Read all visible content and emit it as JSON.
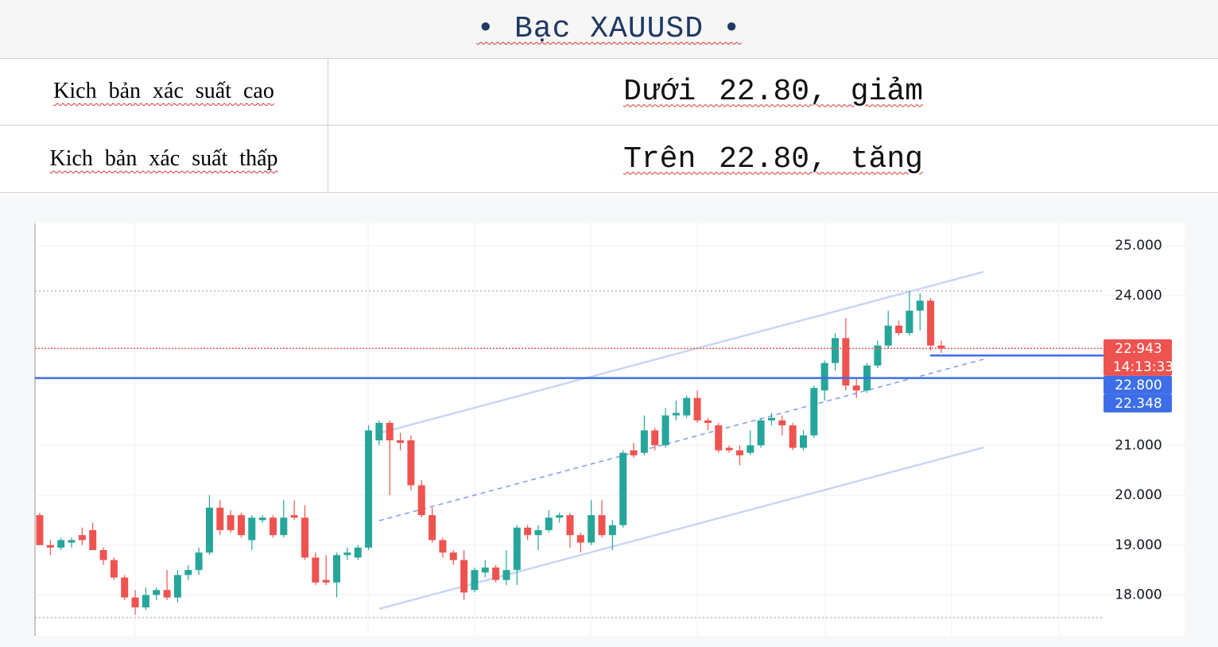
{
  "header": {
    "title": "• Bạc  XAUUSD •"
  },
  "table": {
    "rows": [
      [
        "Kich bản xác suất cao",
        "Dưới 22.80, giảm"
      ],
      [
        "Kich bản xác suất thấp",
        "Trên 22.80, tăng"
      ]
    ]
  },
  "chart_data": {
    "type": "candlestick",
    "up_color": "#26a69a",
    "down_color": "#ef5350",
    "ylim": [
      17.18,
      25.45
    ],
    "yticks": [
      {
        "value": 25,
        "label": "25.000"
      },
      {
        "value": 24,
        "label": "24.000"
      },
      {
        "value": 21,
        "label": "21.000"
      },
      {
        "value": 20,
        "label": "20.000"
      },
      {
        "value": 19,
        "label": "19.000"
      },
      {
        "value": 18,
        "label": "18.000"
      }
    ],
    "grid": true,
    "open": [
      19.6,
      19.0,
      18.95,
      19.05,
      19.2,
      19.3,
      18.9,
      18.7,
      18.35,
      17.95,
      17.75,
      18.0,
      18.1,
      17.95,
      18.4,
      18.5,
      18.85,
      19.75,
      19.6,
      19.6,
      19.1,
      19.5,
      19.55,
      19.2,
      19.6,
      19.55,
      18.75,
      18.3,
      18.25,
      18.8,
      18.75,
      18.95,
      21.1,
      21.45,
      21.1,
      21.1,
      20.2,
      19.6,
      19.1,
      18.85,
      18.7,
      18.1,
      18.45,
      18.55,
      18.3,
      18.5,
      19.35,
      19.2,
      19.3,
      19.55,
      19.6,
      19.2,
      19.05,
      19.6,
      19.2,
      19.4,
      20.9,
      20.85,
      21.3,
      21.0,
      21.6,
      21.6,
      21.95,
      21.5,
      21.4,
      20.95,
      20.9,
      20.85,
      21.0,
      21.5,
      21.5,
      21.4,
      20.95,
      21.2,
      22.1,
      22.65,
      23.15,
      22.2,
      22.1,
      22.6,
      23.0,
      23.4,
      23.25,
      23.7,
      23.9,
      23.0
    ],
    "high": [
      19.65,
      19.1,
      19.15,
      19.15,
      19.35,
      19.45,
      18.95,
      18.75,
      18.4,
      18.1,
      18.15,
      18.15,
      18.5,
      18.5,
      18.6,
      18.95,
      20.0,
      19.9,
      19.7,
      19.65,
      19.6,
      19.6,
      19.6,
      19.9,
      19.9,
      19.8,
      18.85,
      18.8,
      18.85,
      18.95,
      19.0,
      21.4,
      21.5,
      21.5,
      21.25,
      21.2,
      20.3,
      19.75,
      19.15,
      18.9,
      18.9,
      18.55,
      18.7,
      18.6,
      18.9,
      19.4,
      19.4,
      19.4,
      19.7,
      19.65,
      19.65,
      19.25,
      19.9,
      19.9,
      19.5,
      20.9,
      21.05,
      21.6,
      21.35,
      21.75,
      21.9,
      22.0,
      22.1,
      21.55,
      21.45,
      21.0,
      21.0,
      21.3,
      21.55,
      21.65,
      21.6,
      21.45,
      21.3,
      22.2,
      22.7,
      23.25,
      23.55,
      22.35,
      22.65,
      23.1,
      23.7,
      23.5,
      24.1,
      24.05,
      23.95,
      23.1
    ],
    "low": [
      19.0,
      18.8,
      18.9,
      18.95,
      19.0,
      18.9,
      18.6,
      18.3,
      17.9,
      17.6,
      17.7,
      17.9,
      17.9,
      17.85,
      18.3,
      18.4,
      18.8,
      19.2,
      19.25,
      19.15,
      18.9,
      19.45,
      19.15,
      19.15,
      19.5,
      18.7,
      18.2,
      18.2,
      17.95,
      18.7,
      18.7,
      18.9,
      21.0,
      20.0,
      20.9,
      20.1,
      19.55,
      19.05,
      18.75,
      18.6,
      17.9,
      18.05,
      18.35,
      18.25,
      18.2,
      18.2,
      19.1,
      18.9,
      19.25,
      19.45,
      18.95,
      18.85,
      19.0,
      19.15,
      18.9,
      19.35,
      20.75,
      20.8,
      20.9,
      20.95,
      21.5,
      21.55,
      21.45,
      21.3,
      20.85,
      20.85,
      20.6,
      20.8,
      20.95,
      21.4,
      21.2,
      20.9,
      20.9,
      21.15,
      21.9,
      22.5,
      22.1,
      21.95,
      22.05,
      22.55,
      22.95,
      23.2,
      23.2,
      23.3,
      22.9,
      22.85
    ],
    "close": [
      19.0,
      18.95,
      19.1,
      19.1,
      19.1,
      18.9,
      18.7,
      18.35,
      17.95,
      17.75,
      18.0,
      18.1,
      17.95,
      18.4,
      18.5,
      18.85,
      19.75,
      19.3,
      19.3,
      19.2,
      19.55,
      19.55,
      19.2,
      19.55,
      19.55,
      18.75,
      18.25,
      18.25,
      18.8,
      18.85,
      18.95,
      21.3,
      21.45,
      21.1,
      21.05,
      20.2,
      19.6,
      19.1,
      18.85,
      18.7,
      18.05,
      18.5,
      18.55,
      18.3,
      18.5,
      19.35,
      19.2,
      19.3,
      19.55,
      19.6,
      19.2,
      19.05,
      19.6,
      19.2,
      19.4,
      20.85,
      20.8,
      21.3,
      21.0,
      21.6,
      21.65,
      21.95,
      21.5,
      21.45,
      20.9,
      20.9,
      20.8,
      21.0,
      21.5,
      21.55,
      21.4,
      20.95,
      21.2,
      22.15,
      22.65,
      23.15,
      22.2,
      22.1,
      22.6,
      23.0,
      23.4,
      23.25,
      23.7,
      23.9,
      23.0,
      22.943
    ],
    "price_labels": [
      {
        "value": 22.943,
        "label": "22.943",
        "color": "#ef5350",
        "countdown": "14:13:33"
      },
      {
        "value": 22.8,
        "label": "22.800",
        "color": "#3d6ee8"
      },
      {
        "value": 22.348,
        "label": "22.348",
        "color": "#3d6ee8"
      }
    ]
  }
}
